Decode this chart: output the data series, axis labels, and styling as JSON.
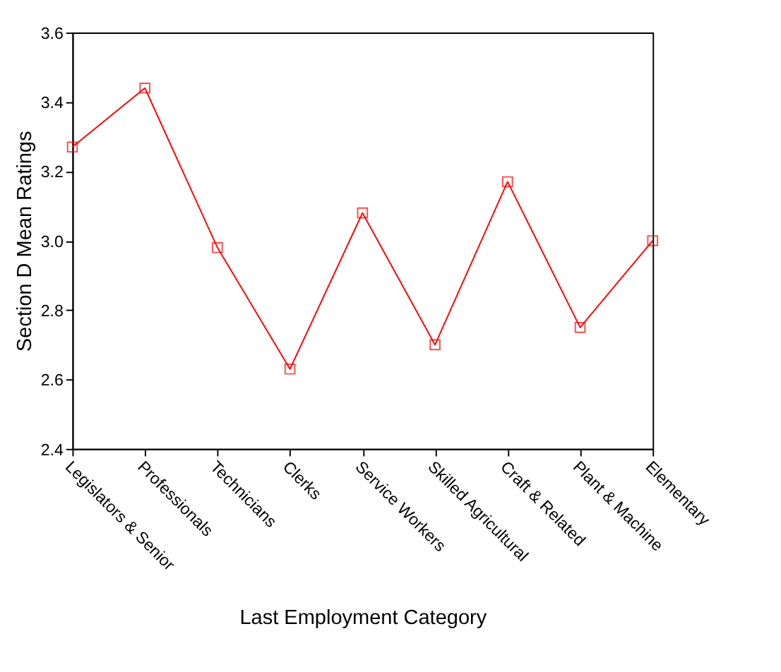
{
  "chart_data": {
    "type": "line",
    "xlabel": "Last Employment Category",
    "ylabel": "Section D Mean Ratings",
    "categories": [
      "Legislators & Senior",
      "Professionals",
      "Technicians",
      "Clerks",
      "Service Workers",
      "Skilled Agricultural",
      "Craft & Related",
      "Plant & Machine",
      "Elementary"
    ],
    "series": [
      {
        "color": "#ff0000",
        "values": [
          3.27,
          3.44,
          2.98,
          2.63,
          3.08,
          2.7,
          3.17,
          2.75,
          3.0
        ]
      }
    ],
    "ylim": [
      2.4,
      3.6
    ],
    "yticks": [
      2.4,
      2.6,
      2.8,
      {
        "value": 3,
        "label": "3.0"
      },
      3.2,
      3.4,
      3.6
    ],
    "grid": false,
    "legend": false,
    "marker": "square",
    "line_style": "solid"
  }
}
